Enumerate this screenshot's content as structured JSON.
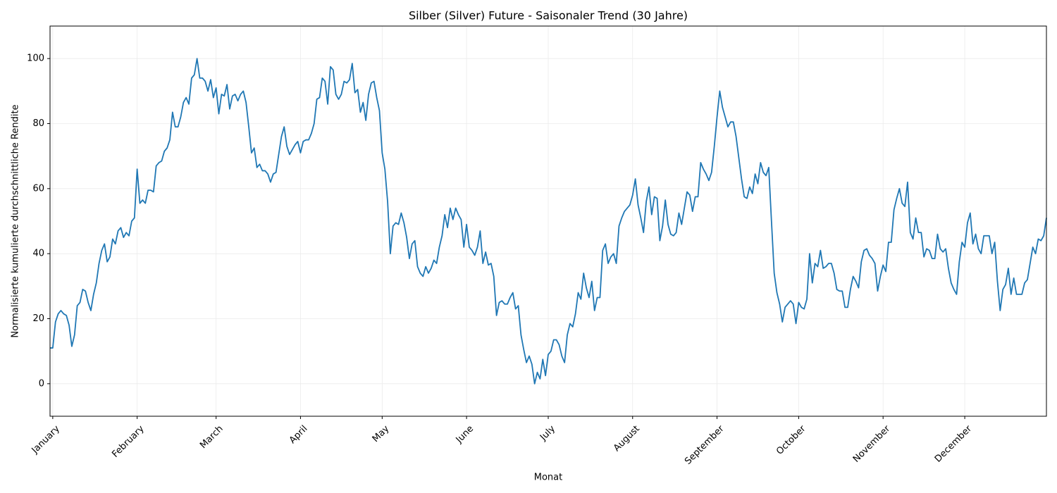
{
  "chart_data": {
    "type": "line",
    "title": "Silber (Silver) Future - Saisonaler Trend (30 Jahre)",
    "x_label": "Monat",
    "y_label": "Normalisierte kumulierte durchschnittliche Rendite",
    "color": "#1f77b4",
    "grid": true,
    "xlim": [
      0,
      366
    ],
    "ylim": [
      -10,
      110
    ],
    "yticks": [
      0,
      20,
      40,
      60,
      80,
      100
    ],
    "xticks": [
      {
        "value": 1,
        "label": "January"
      },
      {
        "value": 32,
        "label": "February"
      },
      {
        "value": 61,
        "label": "March"
      },
      {
        "value": 92,
        "label": "April"
      },
      {
        "value": 122,
        "label": "May"
      },
      {
        "value": 153,
        "label": "June"
      },
      {
        "value": 183,
        "label": "July"
      },
      {
        "value": 214,
        "label": "August"
      },
      {
        "value": 245,
        "label": "September"
      },
      {
        "value": 275,
        "label": "October"
      },
      {
        "value": 306,
        "label": "November"
      },
      {
        "value": 336,
        "label": "December"
      }
    ],
    "x": [
      0,
      1,
      2,
      3,
      4,
      5,
      6,
      7,
      8,
      9,
      10,
      11,
      12,
      13,
      14,
      15,
      16,
      17,
      18,
      19,
      20,
      21,
      22,
      23,
      24,
      25,
      26,
      27,
      28,
      29,
      30,
      31,
      32,
      33,
      34,
      35,
      36,
      37,
      38,
      39,
      40,
      41,
      42,
      43,
      44,
      45,
      46,
      47,
      48,
      49,
      50,
      51,
      52,
      53,
      54,
      55,
      56,
      57,
      58,
      59,
      60,
      61,
      62,
      63,
      64,
      65,
      66,
      67,
      68,
      69,
      70,
      71,
      72,
      73,
      74,
      75,
      76,
      77,
      78,
      79,
      80,
      81,
      82,
      83,
      84,
      85,
      86,
      87,
      88,
      89,
      90,
      91,
      92,
      93,
      94,
      95,
      96,
      97,
      98,
      99,
      100,
      101,
      102,
      103,
      104,
      105,
      106,
      107,
      108,
      109,
      110,
      111,
      112,
      113,
      114,
      115,
      116,
      117,
      118,
      119,
      120,
      121,
      122,
      123,
      124,
      125,
      126,
      127,
      128,
      129,
      130,
      131,
      132,
      133,
      134,
      135,
      136,
      137,
      138,
      139,
      140,
      141,
      142,
      143,
      144,
      145,
      146,
      147,
      148,
      149,
      150,
      151,
      152,
      153,
      154,
      155,
      156,
      157,
      158,
      159,
      160,
      161,
      162,
      163,
      164,
      165,
      166,
      167,
      168,
      169,
      170,
      171,
      172,
      173,
      174,
      175,
      176,
      177,
      178,
      179,
      180,
      181,
      182,
      183,
      184,
      185,
      186,
      187,
      188,
      189,
      190,
      191,
      192,
      193,
      194,
      195,
      196,
      197,
      198,
      199,
      200,
      201,
      202,
      203,
      204,
      205,
      206,
      207,
      208,
      209,
      210,
      211,
      212,
      213,
      214,
      215,
      216,
      217,
      218,
      219,
      220,
      221,
      222,
      223,
      224,
      225,
      226,
      227,
      228,
      229,
      230,
      231,
      232,
      233,
      234,
      235,
      236,
      237,
      238,
      239,
      240,
      241,
      242,
      243,
      244,
      245,
      246,
      247,
      248,
      249,
      250,
      251,
      252,
      253,
      254,
      255,
      256,
      257,
      258,
      259,
      260,
      261,
      262,
      263,
      264,
      265,
      266,
      267,
      268,
      269,
      270,
      271,
      272,
      273,
      274,
      275,
      276,
      277,
      278,
      279,
      280,
      281,
      282,
      283,
      284,
      285,
      286,
      287,
      288,
      289,
      290,
      291,
      292,
      293,
      294,
      295,
      296,
      297,
      298,
      299,
      300,
      301,
      302,
      303,
      304,
      305,
      306,
      307,
      308,
      309,
      310,
      311,
      312,
      313,
      314,
      315,
      316,
      317,
      318,
      319,
      320,
      321,
      322,
      323,
      324,
      325,
      326,
      327,
      328,
      329,
      330,
      331,
      332,
      333,
      334,
      335,
      336,
      337,
      338,
      339,
      340,
      341,
      342,
      343,
      344,
      345,
      346,
      347,
      348,
      349,
      350,
      351,
      352,
      353,
      354,
      355,
      356,
      357,
      358,
      359,
      360,
      361,
      362,
      363,
      364,
      365,
      366
    ],
    "values": [
      11,
      11,
      19,
      21.5,
      22.5,
      21.5,
      21,
      18,
      11.5,
      15,
      24,
      25,
      29,
      28.5,
      25,
      22.5,
      27.5,
      31,
      37,
      41,
      43,
      37.5,
      39,
      44.5,
      43,
      47,
      48,
      45,
      46.5,
      45.5,
      50,
      51,
      66,
      55.5,
      56.5,
      55.5,
      59.5,
      59.5,
      59,
      67,
      68,
      68.5,
      71.5,
      72.5,
      75,
      83.5,
      79,
      79,
      82,
      86.5,
      88,
      86,
      94,
      95,
      100,
      94,
      94,
      93,
      90,
      93.5,
      88,
      91,
      83,
      89,
      88.5,
      92,
      84.5,
      88.5,
      89,
      87,
      89,
      90,
      86.5,
      79,
      71,
      72.5,
      66.5,
      67.5,
      65.5,
      65.5,
      64.5,
      62,
      64.5,
      65,
      70.5,
      76,
      79,
      73,
      70.5,
      72,
      73.5,
      74.5,
      71,
      74.5,
      75,
      75,
      77,
      80,
      87.5,
      88,
      94,
      93,
      86,
      97.5,
      96.5,
      89,
      87.5,
      89,
      93,
      92.5,
      93.5,
      98.5,
      89.5,
      90.5,
      83.5,
      86.5,
      81,
      89,
      92.5,
      93,
      88,
      84,
      71,
      66,
      56,
      40,
      48.5,
      49.5,
      49,
      52.5,
      49.5,
      45,
      38.5,
      43,
      44,
      36,
      34,
      33,
      36,
      34,
      35.5,
      38,
      37,
      42,
      45.5,
      52,
      48,
      54,
      50.5,
      54,
      52,
      50.5,
      42,
      49,
      42,
      41,
      39.5,
      42,
      47,
      37,
      40.5,
      36.5,
      37,
      33,
      21,
      25,
      25.5,
      24.5,
      24.5,
      26.5,
      28,
      23,
      24,
      15,
      10.5,
      6.5,
      8.5,
      6,
      0,
      3.5,
      1.5,
      7.5,
      2.5,
      9,
      10,
      13.5,
      13.5,
      12,
      8.5,
      6.5,
      15,
      18.5,
      17.5,
      21.5,
      28,
      26,
      34,
      29.5,
      26.5,
      31.5,
      22.5,
      26.5,
      26.5,
      41,
      43,
      37,
      39,
      40,
      37,
      48.5,
      51,
      53,
      54,
      55,
      58,
      63,
      55,
      51,
      46.5,
      56,
      60.5,
      52,
      57.5,
      57,
      44,
      48.5,
      56.5,
      49,
      46,
      45.5,
      46.5,
      52.5,
      49,
      54,
      59,
      58,
      53,
      57.5,
      57.5,
      68,
      66,
      64.5,
      62.5,
      65,
      73,
      82,
      90,
      85,
      82,
      79,
      80.5,
      80.5,
      76,
      69.5,
      63,
      57.5,
      57,
      60.5,
      58.5,
      64.5,
      61.5,
      68,
      65,
      64,
      66.5,
      50,
      34,
      28,
      24.5,
      19,
      23.5,
      24.5,
      25.5,
      24.5,
      18.5,
      25,
      23.5,
      23,
      26,
      40,
      31,
      37,
      36,
      41,
      35.5,
      36,
      37,
      37,
      34,
      29,
      28.5,
      28.5,
      23.5,
      23.5,
      29,
      33,
      31.5,
      29.5,
      37.5,
      41,
      41.5,
      39.5,
      38.5,
      37,
      28.5,
      33,
      36.5,
      34.5,
      43.5,
      43.5,
      53.5,
      57,
      60,
      55.5,
      54.5,
      62,
      46.5,
      44.5,
      51,
      46.5,
      46.5,
      39,
      41.5,
      41,
      38.5,
      38.5,
      46,
      41.5,
      40.5,
      41.5,
      35.5,
      31,
      29,
      27.5,
      37.5,
      43.5,
      42,
      49.5,
      52.5,
      43,
      46,
      41.5,
      40,
      45.5,
      45.5,
      45.5,
      40,
      43.5,
      31.5,
      22.5,
      29,
      30.5,
      35.5,
      27.5,
      32.5,
      27.5,
      27.5,
      27.5,
      31,
      32,
      37,
      42,
      40,
      44.5,
      44,
      45.5,
      51
    ]
  }
}
